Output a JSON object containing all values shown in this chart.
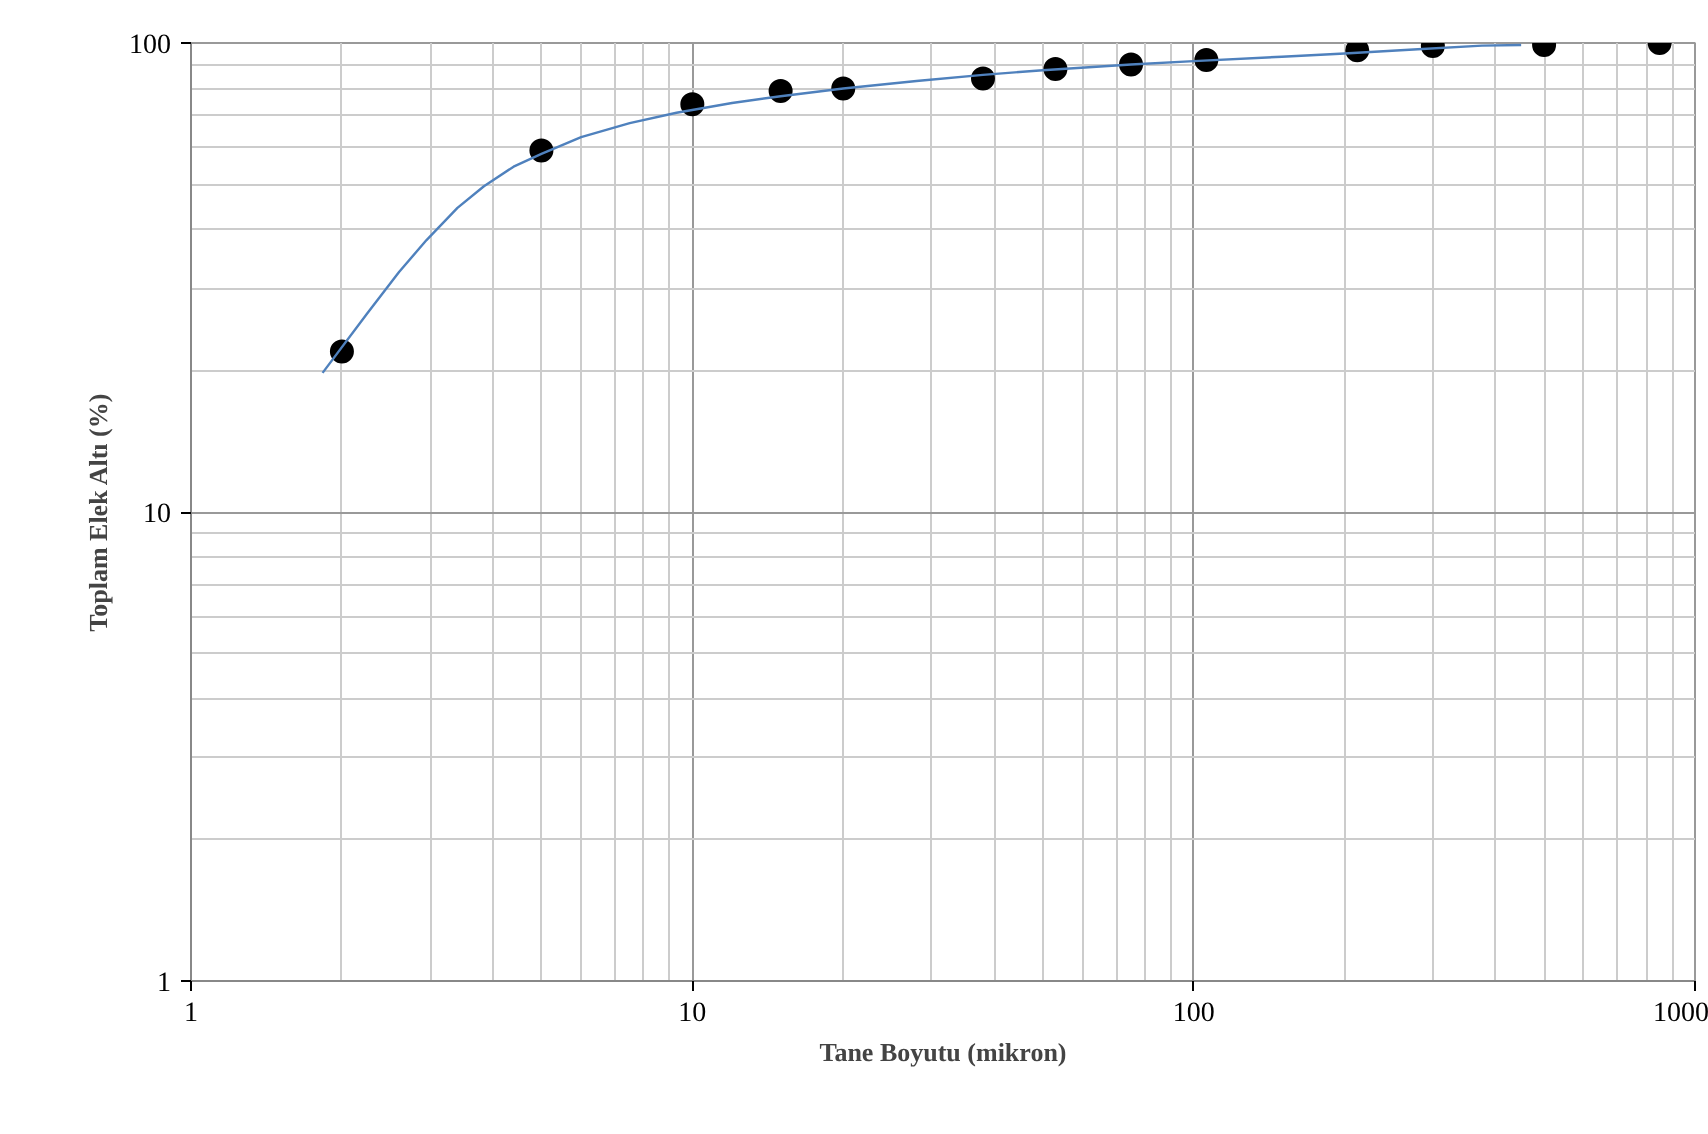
{
  "chart_data": {
    "type": "scatter",
    "xlabel": "Tane Boyutu (mikron)",
    "ylabel": "Toplam Elek Altı (%)",
    "log": "xy",
    "grid": true,
    "xlim": [
      1,
      1000
    ],
    "ylim": [
      1,
      100
    ],
    "xticks": [
      1,
      10,
      100,
      1000
    ],
    "yticks": [
      1,
      10,
      100
    ],
    "series": [
      {
        "marker": "circle",
        "color": "#000000",
        "x": [
          2,
          5,
          10,
          15,
          20,
          38,
          53,
          75,
          106,
          212,
          300,
          500,
          850
        ],
        "values": [
          22,
          59,
          74,
          79,
          80,
          84,
          88,
          90,
          92,
          96.5,
          98.5,
          99,
          100
        ]
      },
      {
        "type": "line",
        "color": "#4f81bd",
        "x": [
          1.83,
          2.24,
          2.6,
          2.95,
          3.4,
          3.84,
          4.4,
          5,
          6,
          7.5,
          9.3,
          12,
          15,
          20,
          28,
          38,
          50,
          75,
          100,
          150,
          200,
          280,
          376,
          450
        ],
        "values": [
          19.8,
          26.4,
          32.5,
          38,
          44.5,
          49.5,
          54.5,
          58,
          63,
          67.5,
          71,
          74.5,
          77,
          80,
          83,
          85.5,
          87.5,
          90,
          91.5,
          93.5,
          95,
          97,
          98.7,
          99
        ]
      }
    ]
  }
}
